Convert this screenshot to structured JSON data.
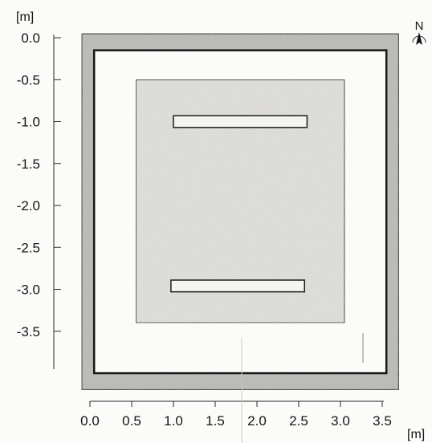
{
  "axes": {
    "y": {
      "unit_label": "[m]",
      "ticks": [
        {
          "value": 0.0,
          "label": "0.0"
        },
        {
          "value": -0.5,
          "label": "-0.5"
        },
        {
          "value": -1.0,
          "label": "-1.0"
        },
        {
          "value": -1.5,
          "label": "-1.5"
        },
        {
          "value": -2.0,
          "label": "-2.0"
        },
        {
          "value": -2.5,
          "label": "-2.5"
        },
        {
          "value": -3.0,
          "label": "-3.0"
        },
        {
          "value": -3.5,
          "label": "-3.5"
        }
      ]
    },
    "x": {
      "unit_label": "[m]",
      "ticks": [
        {
          "value": 0.0,
          "label": "0.0"
        },
        {
          "value": 0.5,
          "label": "0.5"
        },
        {
          "value": 1.0,
          "label": "1.0"
        },
        {
          "value": 1.5,
          "label": "1.5"
        },
        {
          "value": 2.0,
          "label": "2.0"
        },
        {
          "value": 2.5,
          "label": "2.5"
        },
        {
          "value": 3.0,
          "label": "3.0"
        },
        {
          "value": 3.5,
          "label": "3.5"
        }
      ]
    }
  },
  "north_arrow": {
    "label": "N",
    "icon": "north-arrow-icon"
  },
  "plan": {
    "outer_wall": {
      "x_from": -0.1,
      "x_to": 3.7,
      "y_from": -4.2,
      "y_to": 0.05
    },
    "inner_room": {
      "x_from": 0.05,
      "x_to": 3.55,
      "y_from": -4.0,
      "y_to": -0.15
    },
    "central_slab": {
      "x_from": 0.55,
      "x_to": 3.05,
      "y_from": -3.4,
      "y_to": -0.5
    },
    "bars": [
      {
        "name": "upper-bar",
        "x_from": 1.0,
        "x_to": 2.6,
        "y_from": -1.07,
        "y_to": -0.93
      },
      {
        "name": "lower-bar",
        "x_from": 0.97,
        "x_to": 2.57,
        "y_from": -3.03,
        "y_to": -2.89
      }
    ]
  },
  "colors": {
    "ink": "#161616",
    "wall_fill": "#bdbdba",
    "room_fill": "#fbfbf9",
    "slab_fill": "#e7e6e2",
    "bar_fill": "#f4f4f1"
  }
}
